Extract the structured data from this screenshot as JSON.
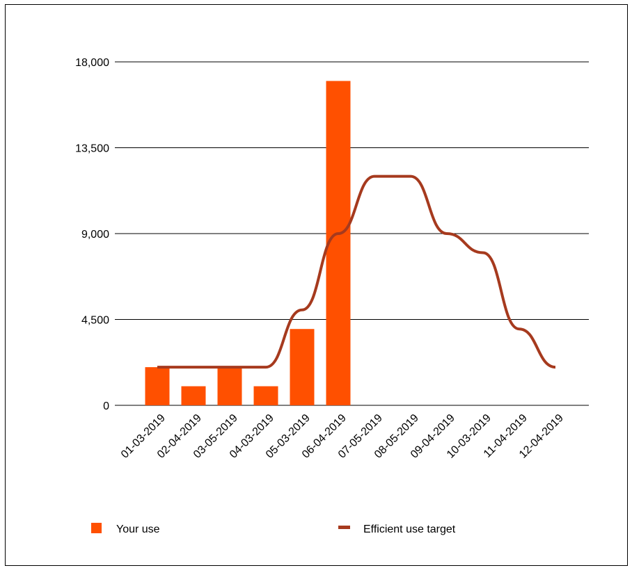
{
  "chart_data": {
    "type": "bar",
    "categories": [
      "01-03-2019",
      "02-04-2019",
      "03-05-2019",
      "04-03-2019",
      "05-03-2019",
      "06-04-2019",
      "07-05-2019",
      "08-05-2019",
      "09-04-2019",
      "10-03-2019",
      "11-04-2019",
      "12-04-2019"
    ],
    "series": [
      {
        "name": "Your use",
        "kind": "bar",
        "color": "#ff5000",
        "values": [
          2000,
          1000,
          2000,
          1000,
          4000,
          17000,
          null,
          null,
          null,
          null,
          null,
          null
        ]
      },
      {
        "name": "Efficient use target",
        "kind": "line",
        "color": "#a63a1e",
        "values": [
          2000,
          2000,
          2000,
          2000,
          5000,
          9000,
          12000,
          12000,
          9000,
          8000,
          4000,
          2000
        ]
      }
    ],
    "yticks": [
      0,
      4500,
      9000,
      13500,
      18000
    ],
    "ytick_labels": [
      "0",
      "4,500",
      "9,000",
      "13,500",
      "18,000"
    ],
    "ylim": [
      0,
      18000
    ],
    "grid": true,
    "legend_position": "bottom"
  }
}
